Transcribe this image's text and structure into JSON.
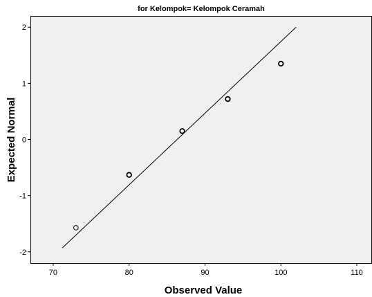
{
  "chart_data": {
    "type": "scatter",
    "title": "for Kelompok= Kelompok Ceramah",
    "xlabel": "Observed Value",
    "ylabel": "Expected Normal",
    "xlim": [
      67,
      112
    ],
    "ylim": [
      -2.2,
      2.2
    ],
    "x_ticks": [
      70,
      80,
      90,
      100,
      110
    ],
    "y_ticks": [
      2,
      1,
      0,
      -1,
      -2
    ],
    "points": [
      {
        "x": 73,
        "y": -1.57
      },
      {
        "x": 80,
        "y": -0.63
      },
      {
        "x": 87,
        "y": 0.15
      },
      {
        "x": 93,
        "y": 0.72
      },
      {
        "x": 100,
        "y": 1.35
      }
    ],
    "reference_line": {
      "x1": 71.2,
      "y1": -1.93,
      "x2": 102.0,
      "y2": 2.0
    },
    "grid": false,
    "plot_background": "#f0f0f0",
    "line_color": "#000000",
    "marker": "open-circle"
  }
}
